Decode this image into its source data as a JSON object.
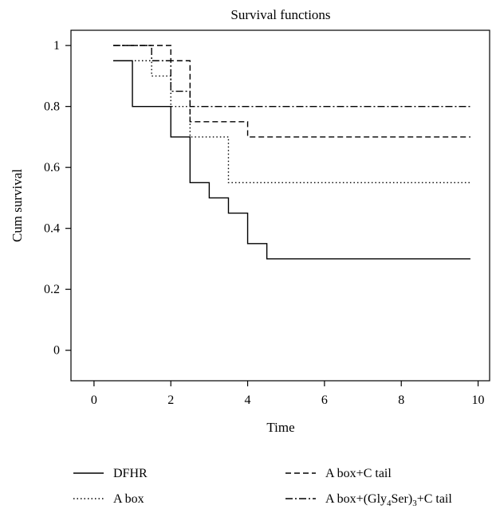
{
  "chart_data": {
    "type": "line",
    "step": true,
    "title": "Survival functions",
    "xlabel": "Time",
    "ylabel": "Cum survival",
    "xlim": [
      -0.6,
      10.3
    ],
    "ylim": [
      -0.1,
      1.05
    ],
    "xticks": [
      0,
      2,
      4,
      6,
      8,
      10
    ],
    "yticks": [
      0,
      0.2,
      0.4,
      0.6,
      0.8,
      1
    ],
    "xtick_labels": [
      "0",
      "2",
      "4",
      "6",
      "8",
      "10"
    ],
    "ytick_labels": [
      "0",
      "0.2",
      "0.4",
      "0.6",
      "0.8",
      "1"
    ],
    "grid": false,
    "legend_position": "bottom",
    "series": [
      {
        "name": "DFHR",
        "dash": "solid",
        "points": [
          [
            0.5,
            0.95
          ],
          [
            1.0,
            0.8
          ],
          [
            2.0,
            0.7
          ],
          [
            2.5,
            0.55
          ],
          [
            3.0,
            0.5
          ],
          [
            3.5,
            0.45
          ],
          [
            4.0,
            0.35
          ],
          [
            4.5,
            0.3
          ],
          [
            9.8,
            0.3
          ]
        ]
      },
      {
        "name": "A box+C tail",
        "dash": "dashed",
        "points": [
          [
            0.5,
            1.0
          ],
          [
            2.0,
            0.95
          ],
          [
            2.5,
            0.75
          ],
          [
            4.0,
            0.7
          ],
          [
            9.8,
            0.7
          ]
        ]
      },
      {
        "name": "A box",
        "dash": "dotted",
        "points": [
          [
            0.5,
            0.95
          ],
          [
            1.5,
            0.9
          ],
          [
            2.0,
            0.8
          ],
          [
            2.5,
            0.7
          ],
          [
            3.5,
            0.55
          ],
          [
            9.8,
            0.55
          ]
        ]
      },
      {
        "name": "A box+(Gly4Ser)3+C tail",
        "legend_parts": [
          "A box+(Gly",
          "4",
          "Ser)",
          "3",
          "+C tail"
        ],
        "dash": "dashdot",
        "points": [
          [
            0.5,
            1.0
          ],
          [
            1.5,
            0.95
          ],
          [
            2.0,
            0.85
          ],
          [
            2.5,
            0.8
          ],
          [
            3.0,
            0.8
          ],
          [
            9.8,
            0.8
          ]
        ]
      }
    ]
  }
}
